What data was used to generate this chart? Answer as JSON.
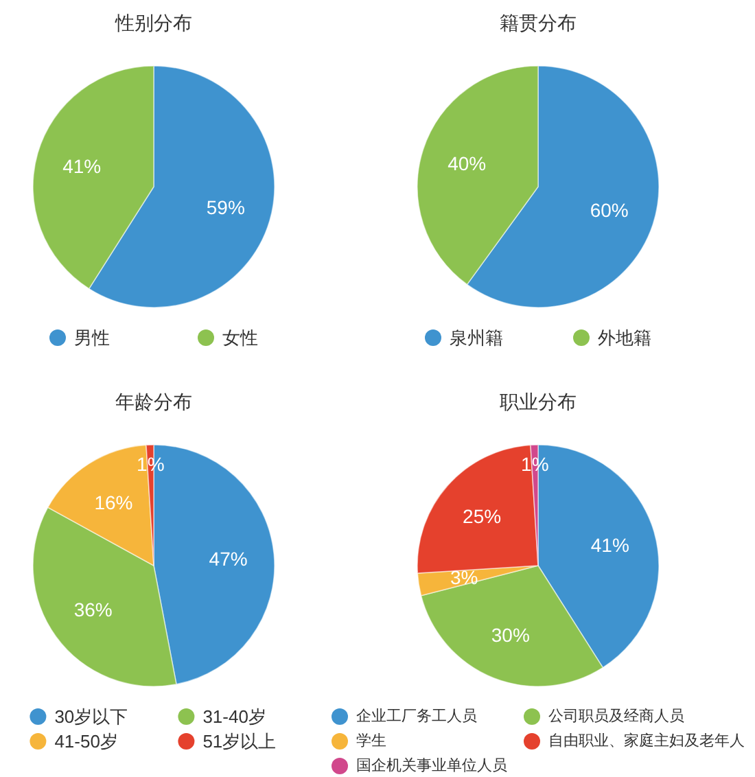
{
  "chart_data": [
    {
      "type": "pie",
      "title": "性别分布",
      "categories": [
        "男性",
        "女性"
      ],
      "values": [
        59,
        41
      ],
      "colors": [
        "#3f93cf",
        "#8dc250"
      ],
      "value_labels": [
        "59%",
        "41%"
      ],
      "legend": "bottom"
    },
    {
      "type": "pie",
      "title": "籍贯分布",
      "categories": [
        "泉州籍",
        "外地籍"
      ],
      "values": [
        60,
        40
      ],
      "colors": [
        "#3f93cf",
        "#8dc250"
      ],
      "value_labels": [
        "60%",
        "40%"
      ],
      "legend": "bottom"
    },
    {
      "type": "pie",
      "title": "年龄分布",
      "categories": [
        "30岁以下",
        "31-40岁",
        "41-50岁",
        "51岁以上"
      ],
      "values": [
        47,
        36,
        16,
        1
      ],
      "colors": [
        "#3f93cf",
        "#8dc250",
        "#f6b53b",
        "#e5412d"
      ],
      "value_labels": [
        "47%",
        "36%",
        "16%",
        "1%"
      ],
      "legend": "bottom"
    },
    {
      "type": "pie",
      "title": "职业分布",
      "categories": [
        "企业工厂务工人员",
        "公司职员及经商人员",
        "学生",
        "自由职业、家庭主妇及老年人",
        "国企机关事业单位人员"
      ],
      "values": [
        41,
        30,
        3,
        25,
        1
      ],
      "colors": [
        "#3f93cf",
        "#8dc250",
        "#f6b53b",
        "#e5412d",
        "#d1488c"
      ],
      "value_labels": [
        "41%",
        "30%",
        "3%",
        "25%",
        "1%"
      ],
      "legend": "bottom"
    }
  ]
}
